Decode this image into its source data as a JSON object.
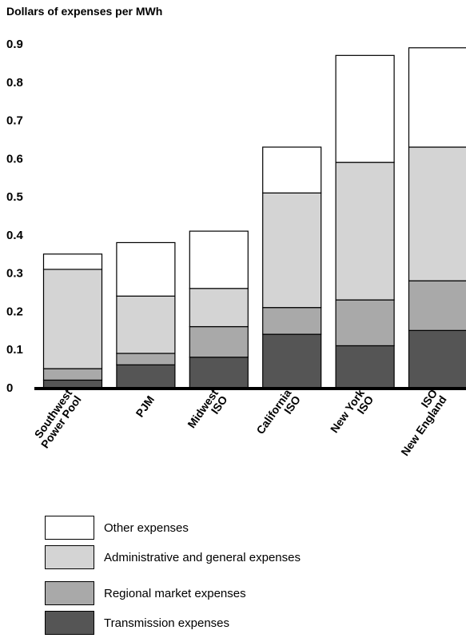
{
  "chart_data": {
    "type": "bar",
    "stacked": true,
    "ylabel": "Dollars of expenses per MWh",
    "ylim": [
      0,
      0.9
    ],
    "yticks": [
      "0",
      "0.1",
      "0.2",
      "0.3",
      "0.4",
      "0.5",
      "0.6",
      "0.7",
      "0.8",
      "0.9"
    ],
    "categories": [
      [
        "Southwest",
        "Power Pool"
      ],
      [
        "PJM"
      ],
      [
        "Midwest",
        "ISO"
      ],
      [
        "California",
        "ISO"
      ],
      [
        "New York",
        "ISO"
      ],
      [
        "ISO",
        "New England"
      ]
    ],
    "series": [
      {
        "name": "Transmission expenses",
        "color": "#555555",
        "values": [
          0.02,
          0.06,
          0.08,
          0.14,
          0.11,
          0.15
        ]
      },
      {
        "name": "Regional market expenses",
        "color": "#a9a9a9",
        "values": [
          0.03,
          0.03,
          0.08,
          0.07,
          0.12,
          0.13
        ]
      },
      {
        "name": "Administrative and general expenses",
        "color": "#d4d4d4",
        "values": [
          0.26,
          0.15,
          0.1,
          0.3,
          0.36,
          0.35
        ]
      },
      {
        "name": "Other expenses",
        "color": "#ffffff",
        "values": [
          0.04,
          0.14,
          0.15,
          0.12,
          0.28,
          0.26
        ]
      }
    ],
    "legend_order": [
      "Other expenses",
      "Administrative and general expenses",
      "Regional market expenses",
      "Transmission expenses"
    ],
    "grid": false,
    "legend_position": "bottom"
  }
}
